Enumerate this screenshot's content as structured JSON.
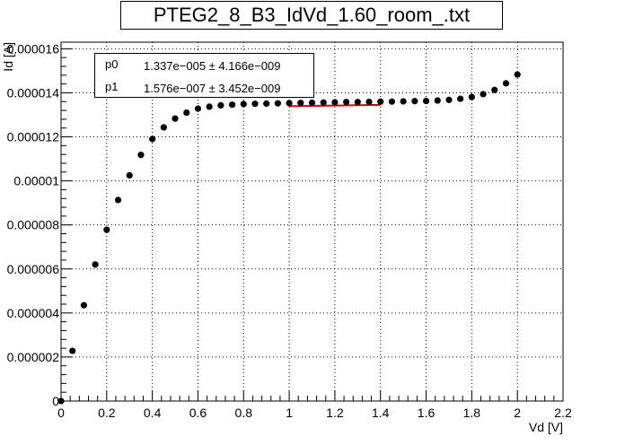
{
  "title": "PTEG2_8_B3_IdVd_1.60_room_.txt",
  "stats": [
    {
      "name": "p0",
      "value": "1.337e−005 ± 4.166e−009"
    },
    {
      "name": "p1",
      "value": "1.576e−007 ± 3.452e−009"
    }
  ],
  "chart_data": {
    "type": "scatter",
    "title": "PTEG2_8_B3_IdVd_1.60_room_.txt",
    "xlabel": "Vd [V]",
    "ylabel": "Id [A]",
    "xlim": [
      0,
      2.2
    ],
    "ylim": [
      0,
      1.63e-05
    ],
    "grid": true,
    "x_ticks": [
      "0",
      "0.2",
      "0.4",
      "0.6",
      "0.8",
      "1",
      "1.2",
      "1.4",
      "1.6",
      "1.8",
      "2",
      "2.2"
    ],
    "x_tick_values": [
      0,
      0.2,
      0.4,
      0.6,
      0.8,
      1.0,
      1.2,
      1.4,
      1.6,
      1.8,
      2.0,
      2.2
    ],
    "y_ticks": [
      "0",
      "0.000002",
      "0.000004",
      "0.000006",
      "0.000008",
      "0.00001",
      "0.000012",
      "0.000014",
      "0.000016"
    ],
    "y_tick_values": [
      0,
      2e-06,
      4e-06,
      6e-06,
      8e-06,
      1e-05,
      1.2e-05,
      1.4e-05,
      1.6e-05
    ],
    "x": [
      0,
      0.05,
      0.1,
      0.15,
      0.2,
      0.25,
      0.3,
      0.35,
      0.4,
      0.45,
      0.5,
      0.55,
      0.6,
      0.65,
      0.7,
      0.75,
      0.8,
      0.85,
      0.9,
      0.95,
      1.0,
      1.05,
      1.1,
      1.15,
      1.2,
      1.25,
      1.3,
      1.35,
      1.4,
      1.45,
      1.5,
      1.55,
      1.6,
      1.65,
      1.7,
      1.75,
      1.8,
      1.85,
      1.9,
      1.95,
      2.0
    ],
    "y": [
      0,
      2.28e-06,
      4.35e-06,
      6.2e-06,
      7.78e-06,
      9.13e-06,
      1.025e-05,
      1.118e-05,
      1.19e-05,
      1.243e-05,
      1.283e-05,
      1.31e-05,
      1.328e-05,
      1.337e-05,
      1.343e-05,
      1.346e-05,
      1.349e-05,
      1.35e-05,
      1.351e-05,
      1.352e-05,
      1.353e-05,
      1.354e-05,
      1.355e-05,
      1.356e-05,
      1.357e-05,
      1.358e-05,
      1.358e-05,
      1.359e-05,
      1.36e-05,
      1.36e-05,
      1.361e-05,
      1.362e-05,
      1.363e-05,
      1.365e-05,
      1.368e-05,
      1.373e-05,
      1.381e-05,
      1.394e-05,
      1.413e-05,
      1.443e-05,
      1.483e-05
    ],
    "fit": {
      "x_range": [
        1.0,
        1.4
      ],
      "p0": 1.337e-05,
      "p1": 1.576e-07,
      "color": "#cc0000"
    },
    "marker_color": "#000000",
    "legend_placement": "top-left"
  }
}
